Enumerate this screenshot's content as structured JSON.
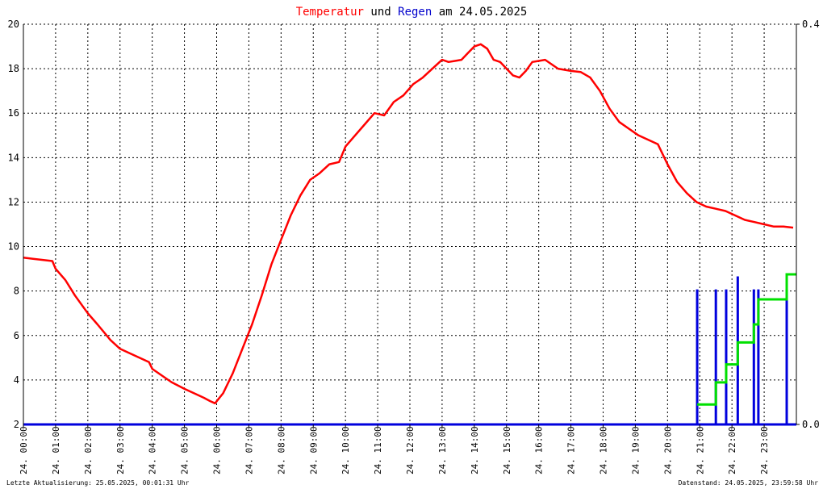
{
  "chart_data": {
    "type": "line",
    "title_parts": {
      "temp": "Temperatur",
      "und": " und ",
      "rain": "Regen",
      "date": " am 24.05.2025"
    },
    "ylim": [
      2,
      20
    ],
    "yticks": [
      "2",
      "4",
      "6",
      "8",
      "10",
      "12",
      "14",
      "16",
      "18",
      "20"
    ],
    "y2lim": [
      0.0,
      0.4
    ],
    "y2ticks": [
      "0.0",
      "0.4"
    ],
    "xlim": [
      0,
      24
    ],
    "xtick_labels": [
      "24. 00:00",
      "24. 01:00",
      "24. 02:00",
      "24. 03:00",
      "24. 04:00",
      "24. 05:00",
      "24. 06:00",
      "24. 07:00",
      "24. 08:00",
      "24. 09:00",
      "24. 10:00",
      "24. 11:00",
      "24. 12:00",
      "24. 13:00",
      "24. 14:00",
      "24. 15:00",
      "24. 16:00",
      "24. 17:00",
      "24. 18:00",
      "24. 19:00",
      "24. 20:00",
      "24. 21:00",
      "24. 22:00",
      "24. 23:00"
    ],
    "grid": true,
    "series": [
      {
        "name": "Temperatur",
        "axis": "left",
        "color": "#ff0000",
        "x": [
          0,
          0.3,
          0.6,
          0.9,
          1.0,
          1.3,
          1.6,
          2.0,
          2.3,
          2.7,
          3.0,
          3.3,
          3.6,
          3.9,
          4.0,
          4.3,
          4.6,
          5.0,
          5.3,
          5.6,
          5.8,
          5.95,
          6.2,
          6.5,
          6.8,
          7.1,
          7.4,
          7.7,
          8.0,
          8.3,
          8.6,
          8.9,
          9.2,
          9.5,
          9.8,
          10.0,
          10.3,
          10.6,
          10.9,
          11.2,
          11.5,
          11.8,
          12.1,
          12.4,
          12.7,
          13.0,
          13.2,
          13.4,
          13.6,
          13.8,
          14.0,
          14.2,
          14.4,
          14.6,
          14.8,
          15.0,
          15.2,
          15.4,
          15.6,
          15.8,
          16.0,
          16.2,
          16.4,
          16.6,
          16.8,
          17.0,
          17.3,
          17.6,
          17.9,
          18.2,
          18.5,
          18.8,
          19.1,
          19.4,
          19.7,
          20.0,
          20.3,
          20.6,
          20.9,
          21.2,
          21.5,
          21.8,
          22.1,
          22.4,
          22.7,
          23.0,
          23.3,
          23.6,
          23.9
        ],
        "values": [
          9.5,
          9.45,
          9.4,
          9.35,
          9.0,
          8.5,
          7.8,
          7.0,
          6.5,
          5.8,
          5.4,
          5.2,
          5.0,
          4.8,
          4.5,
          4.2,
          3.9,
          3.6,
          3.4,
          3.2,
          3.05,
          2.95,
          3.4,
          4.3,
          5.4,
          6.5,
          7.8,
          9.2,
          10.3,
          11.4,
          12.3,
          13.0,
          13.3,
          13.7,
          13.8,
          14.5,
          15.0,
          15.5,
          16.0,
          15.9,
          16.5,
          16.8,
          17.3,
          17.6,
          18.0,
          18.4,
          18.3,
          18.35,
          18.4,
          18.7,
          19.0,
          19.1,
          18.9,
          18.4,
          18.3,
          18.0,
          17.7,
          17.6,
          17.9,
          18.3,
          18.35,
          18.4,
          18.2,
          18.0,
          17.95,
          17.9,
          17.85,
          17.6,
          17.0,
          16.2,
          15.6,
          15.3,
          15.0,
          14.8,
          14.6,
          13.7,
          12.9,
          12.4,
          12.0,
          11.8,
          11.7,
          11.6,
          11.4,
          11.2,
          11.1,
          11.0,
          10.9,
          10.9,
          10.85
        ]
      },
      {
        "name": "Regen",
        "axis": "right",
        "color": "#0000dd",
        "type": "bar",
        "x": [
          20.92,
          21.5,
          21.82,
          22.18,
          22.68,
          22.82,
          23.7
        ],
        "values": [
          0.135,
          0.135,
          0.135,
          0.148,
          0.135,
          0.135,
          0.135
        ]
      },
      {
        "axis": "right",
        "color": "#00e000",
        "type": "step",
        "x": [
          20.92,
          21.5,
          21.82,
          22.18,
          22.68,
          22.82,
          23.7,
          24.0
        ],
        "values": [
          0.0,
          0.02,
          0.042,
          0.06,
          0.082,
          0.1,
          0.125,
          0.15
        ]
      }
    ]
  },
  "footer": {
    "left": "Letzte Aktualisierung: 25.05.2025, 00:01:31 Uhr",
    "right": "Datenstand: 24.05.2025, 23:59:58 Uhr"
  }
}
